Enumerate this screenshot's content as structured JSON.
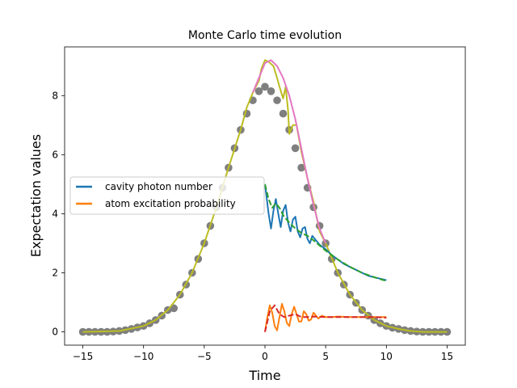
{
  "chart_data": {
    "type": "line",
    "title": "Monte Carlo time evolution",
    "xlabel": "Time",
    "ylabel": "Expectation values",
    "xlim": [
      -16.5,
      16.5
    ],
    "ylim": [
      -0.45,
      9.65
    ],
    "xticks": [
      -15,
      -10,
      -5,
      0,
      5,
      10,
      15
    ],
    "yticks": [
      0,
      2,
      4,
      6,
      8
    ],
    "legend": {
      "placement": "center-left",
      "entries": [
        {
          "label": "cavity photon number",
          "color": "#1f77b4"
        },
        {
          "label": "atom excitation probability",
          "color": "#ff7f0e"
        }
      ]
    },
    "series": [
      {
        "name": "gaussian markers",
        "style": "markers",
        "color": "#7f7f7f",
        "x": [
          -15,
          -14.5,
          -14,
          -13.5,
          -13,
          -12.5,
          -12,
          -11.5,
          -11,
          -10.5,
          -10,
          -9.5,
          -9,
          -8.5,
          -8,
          -7.5,
          -7,
          -6.5,
          -6,
          -5.5,
          -5,
          -4.5,
          -4,
          -3.5,
          -3,
          -2.5,
          -2,
          -1.5,
          -1,
          -0.5,
          0,
          0.5,
          1,
          1.5,
          2,
          2.5,
          3,
          3.5,
          4,
          4.5,
          5,
          5.5,
          6,
          6.5,
          7,
          7.5,
          8,
          8.5,
          9,
          9.5,
          10,
          10.5,
          11,
          11.5,
          12,
          12.5,
          13,
          13.5,
          14,
          14.5,
          15
        ],
        "y": [
          0,
          0,
          0,
          0,
          0,
          0.01,
          0.03,
          0.06,
          0.1,
          0.15,
          0.2,
          0.29,
          0.4,
          0.55,
          0.74,
          0.8,
          1.26,
          1.6,
          2.0,
          2.47,
          3.0,
          3.59,
          4.22,
          4.88,
          5.56,
          6.22,
          6.84,
          7.39,
          7.84,
          8.15,
          8.3,
          8.15,
          7.84,
          7.39,
          6.84,
          6.22,
          5.56,
          4.88,
          4.22,
          3.59,
          3.0,
          2.47,
          2.0,
          1.6,
          1.26,
          0.98,
          0.74,
          0.55,
          0.4,
          0.29,
          0.2,
          0.14,
          0.1,
          0.06,
          0.03,
          0.01,
          0,
          0,
          0,
          0,
          0
        ]
      },
      {
        "name": "monte carlo trajectory",
        "style": "line",
        "color": "#bcbd22",
        "x": [
          -15,
          -12,
          -10,
          -9,
          -8,
          -7,
          -6,
          -5,
          -4,
          -3,
          -2,
          -1.5,
          -1,
          -0.5,
          -0.3,
          0,
          0.3,
          0.7,
          1,
          1.2,
          1.5,
          1.7,
          1.9,
          2,
          2.3,
          2.6,
          3,
          3.5,
          4,
          4.5,
          5,
          6,
          7,
          8,
          9,
          10,
          11,
          12,
          13,
          15
        ],
        "y": [
          0,
          0.03,
          0.2,
          0.4,
          0.74,
          1.26,
          2.0,
          3.0,
          4.22,
          5.56,
          6.84,
          7.6,
          8.1,
          8.5,
          8.9,
          9.2,
          9.15,
          9.0,
          8.6,
          8.3,
          7.9,
          8.3,
          7.5,
          6.7,
          7.0,
          7.0,
          6.1,
          5.2,
          4.4,
          3.4,
          3.0,
          2.0,
          1.26,
          0.74,
          0.4,
          0.2,
          0.1,
          0.03,
          0,
          0
        ]
      },
      {
        "name": "ensemble average",
        "style": "line",
        "color": "#e377c2",
        "x": [
          -1,
          -0.5,
          0,
          0.5,
          1,
          1.5,
          2,
          2.5,
          3,
          3.5,
          4,
          4.5,
          5
        ],
        "y": [
          8.1,
          8.6,
          9.1,
          9.2,
          9.0,
          8.6,
          8.0,
          7.2,
          6.2,
          5.2,
          4.3,
          3.5,
          3.0
        ]
      },
      {
        "name": "cavity photon number",
        "style": "line",
        "color": "#1f77b4",
        "x": [
          0,
          0.15,
          0.3,
          0.5,
          0.7,
          0.9,
          1.1,
          1.3,
          1.5,
          1.7,
          1.9,
          2.1,
          2.3,
          2.5,
          2.7,
          2.9,
          3.1,
          3.3,
          3.5,
          3.7,
          3.9,
          4.2,
          4.5,
          5,
          5.5,
          6,
          6.5,
          7,
          7.5,
          8,
          8.5,
          9,
          9.5,
          10
        ],
        "y": [
          5.0,
          4.5,
          4.0,
          3.5,
          4.1,
          4.5,
          4.0,
          3.55,
          4.1,
          4.3,
          3.7,
          3.4,
          3.8,
          3.9,
          3.4,
          3.2,
          3.5,
          3.55,
          3.15,
          3.0,
          3.25,
          3.1,
          2.95,
          2.8,
          2.6,
          2.45,
          2.3,
          2.2,
          2.1,
          2.0,
          1.9,
          1.85,
          1.8,
          1.75
        ]
      },
      {
        "name": "cavity photon number (average)",
        "style": "dashed",
        "color": "#2ca02c",
        "x": [
          0,
          0.3,
          0.6,
          0.9,
          1.2,
          1.5,
          2,
          2.5,
          3,
          3.5,
          4,
          5,
          6,
          7,
          8,
          9,
          10
        ],
        "y": [
          5.0,
          4.5,
          4.2,
          4.35,
          4.2,
          3.95,
          3.7,
          3.5,
          3.35,
          3.25,
          3.1,
          2.75,
          2.45,
          2.2,
          2.0,
          1.85,
          1.72
        ]
      },
      {
        "name": "atom excitation probability",
        "style": "line",
        "color": "#ff7f0e",
        "x": [
          0,
          0.2,
          0.4,
          0.6,
          0.8,
          1.0,
          1.2,
          1.4,
          1.6,
          1.8,
          2.0,
          2.2,
          2.4,
          2.6,
          2.8,
          3.0,
          3.2,
          3.4,
          3.6,
          3.8,
          4.0,
          4.2,
          4.4,
          4.7,
          5,
          5.5,
          6,
          7,
          8,
          9,
          10
        ],
        "y": [
          0,
          0.5,
          0.9,
          0.65,
          0.2,
          0.05,
          0.5,
          0.95,
          0.7,
          0.3,
          0.2,
          0.6,
          0.85,
          0.6,
          0.35,
          0.35,
          0.7,
          0.6,
          0.38,
          0.42,
          0.65,
          0.55,
          0.45,
          0.55,
          0.5,
          0.5,
          0.52,
          0.5,
          0.5,
          0.5,
          0.5
        ]
      },
      {
        "name": "atom excitation probability (average)",
        "style": "dashed",
        "color": "#d62728",
        "x": [
          0,
          0.4,
          0.8,
          1.2,
          1.6,
          2,
          2.5,
          3,
          3.5,
          4,
          5,
          6,
          7,
          8,
          9,
          10
        ],
        "y": [
          0,
          0.7,
          0.9,
          0.6,
          0.5,
          0.55,
          0.6,
          0.5,
          0.5,
          0.52,
          0.5,
          0.5,
          0.5,
          0.5,
          0.5,
          0.48
        ]
      }
    ]
  }
}
